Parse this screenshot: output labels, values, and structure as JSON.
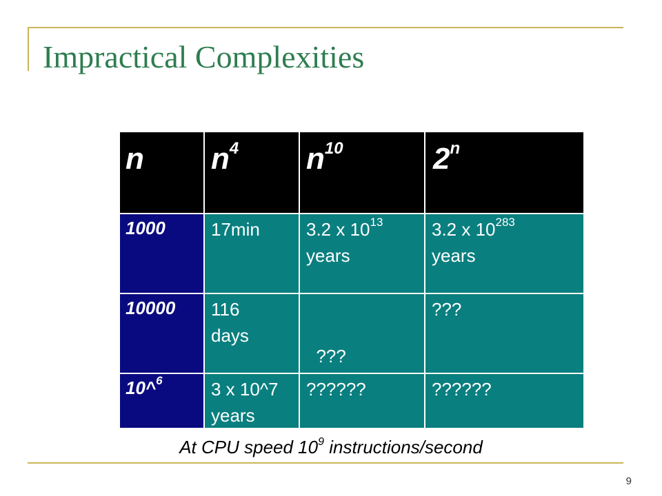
{
  "title": "Impractical Complexities",
  "table": {
    "headers": [
      {
        "base": "n",
        "sup": ""
      },
      {
        "base": "n",
        "sup": "4"
      },
      {
        "base": "n",
        "sup": "10"
      },
      {
        "base": "2",
        "sup": "n"
      }
    ],
    "rows": [
      {
        "label": {
          "base": "1000",
          "sup": ""
        },
        "cells": [
          {
            "l1": "17min",
            "sup": "",
            "l2": ""
          },
          {
            "l1": "3.2 x 10",
            "sup": "13",
            "l2": "years"
          },
          {
            "l1": "3.2 x 10",
            "sup": "283",
            "l2": "years"
          }
        ]
      },
      {
        "label": {
          "base": "10000",
          "sup": ""
        },
        "cells": [
          {
            "l1": "116",
            "sup": "",
            "l2": "days"
          },
          {
            "l1": "  ???",
            "sup": "",
            "l2": ""
          },
          {
            "l1": "???",
            "sup": "",
            "l2": ""
          }
        ]
      },
      {
        "label": {
          "base": "10^",
          "sup": "6"
        },
        "cells": [
          {
            "l1": "3 x 10^7",
            "sup": "",
            "l2": "years"
          },
          {
            "l1": "??????",
            "sup": "",
            "l2": ""
          },
          {
            "l1": "??????",
            "sup": "",
            "l2": ""
          }
        ]
      }
    ]
  },
  "caption": {
    "before": "At CPU speed 10",
    "sup": "9",
    "after": " instructions/second"
  },
  "page_number": "9",
  "colors": {
    "frame": "#c9b458",
    "title": "#2e7d4f",
    "header_bg": "#000000",
    "label_bg": "#0a0a80",
    "body_bg": "#0a7f7f"
  }
}
